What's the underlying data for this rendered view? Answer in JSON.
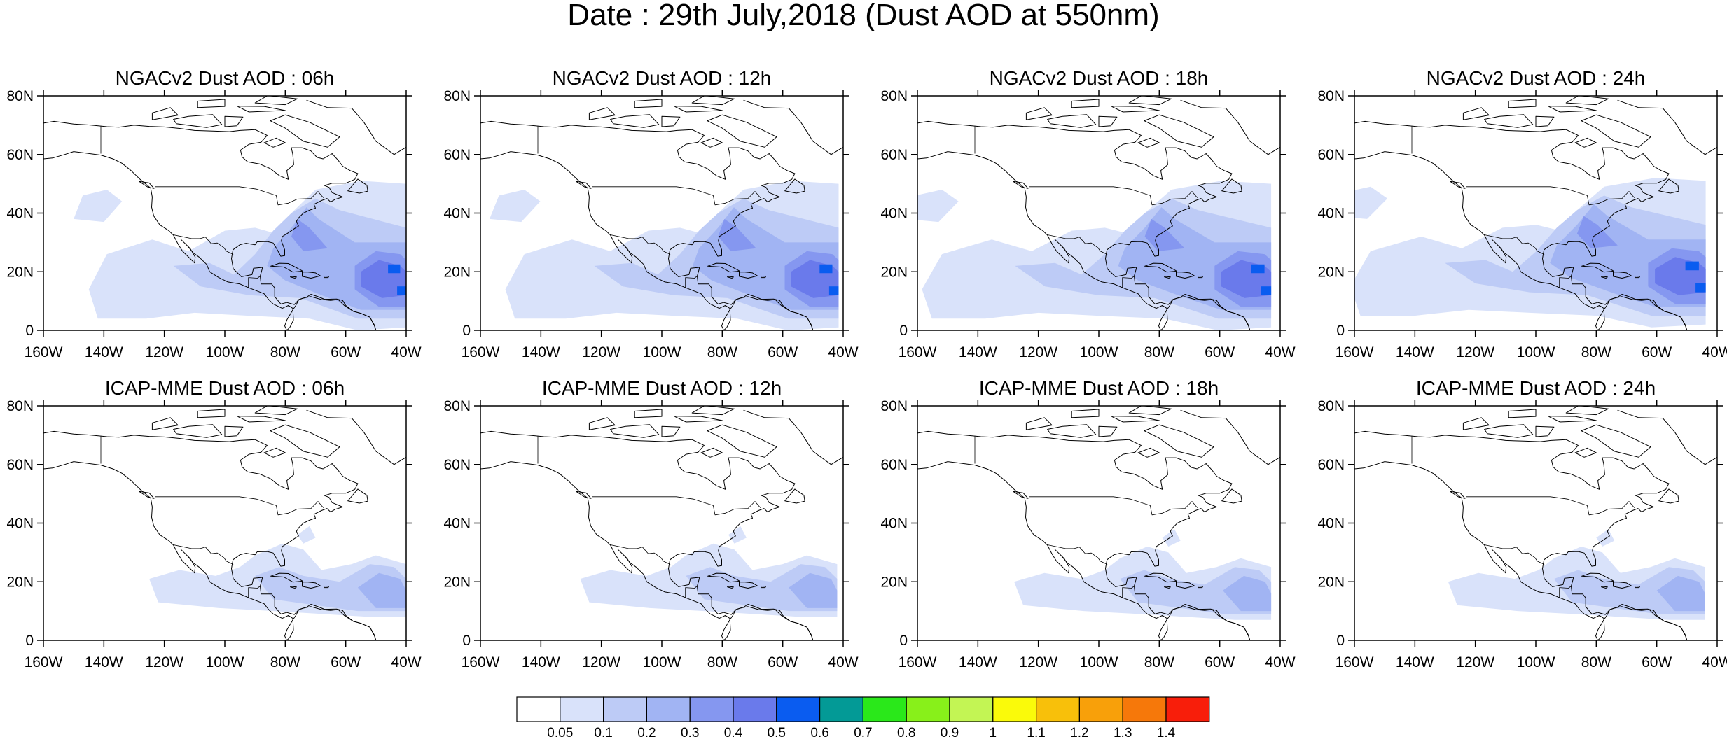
{
  "title": "Date : 29th July,2018 (Dust AOD at 550nm)",
  "x_ticks": [
    "160W",
    "140W",
    "120W",
    "100W",
    "80W",
    "60W",
    "40W"
  ],
  "y_ticks": [
    "0",
    "20N",
    "40N",
    "60N",
    "80N"
  ],
  "lon_range": [
    -160,
    -40
  ],
  "lat_range": [
    0,
    80
  ],
  "panels": [
    {
      "title": "NGACv2 Dust AOD : 06h",
      "model": "NGACv2",
      "lead_hours": 6
    },
    {
      "title": "NGACv2 Dust AOD : 12h",
      "model": "NGACv2",
      "lead_hours": 12
    },
    {
      "title": "NGACv2 Dust AOD : 18h",
      "model": "NGACv2",
      "lead_hours": 18
    },
    {
      "title": "NGACv2 Dust AOD : 24h",
      "model": "NGACv2",
      "lead_hours": 24
    },
    {
      "title": "ICAP-MME Dust AOD : 06h",
      "model": "ICAP-MME",
      "lead_hours": 6
    },
    {
      "title": "ICAP-MME Dust AOD : 12h",
      "model": "ICAP-MME",
      "lead_hours": 12
    },
    {
      "title": "ICAP-MME Dust AOD : 18h",
      "model": "ICAP-MME",
      "lead_hours": 18
    },
    {
      "title": "ICAP-MME Dust AOD : 24h",
      "model": "ICAP-MME",
      "lead_hours": 24
    }
  ],
  "colorbar": {
    "labels": [
      "0.05",
      "0.1",
      "0.2",
      "0.3",
      "0.4",
      "0.5",
      "0.6",
      "0.7",
      "0.8",
      "0.9",
      "1",
      "1.1",
      "1.2",
      "1.3",
      "1.4"
    ],
    "colors": [
      "#ffffff",
      "#d9e2fa",
      "#bdcbf6",
      "#a1b4f3",
      "#8597f0",
      "#6a7aeb",
      "#0a5cf0",
      "#039a96",
      "#2ae81a",
      "#88f01a",
      "#c3f554",
      "#fafa0a",
      "#f8c00a",
      "#f8a00a",
      "#f6780a",
      "#f81e0a"
    ]
  }
}
